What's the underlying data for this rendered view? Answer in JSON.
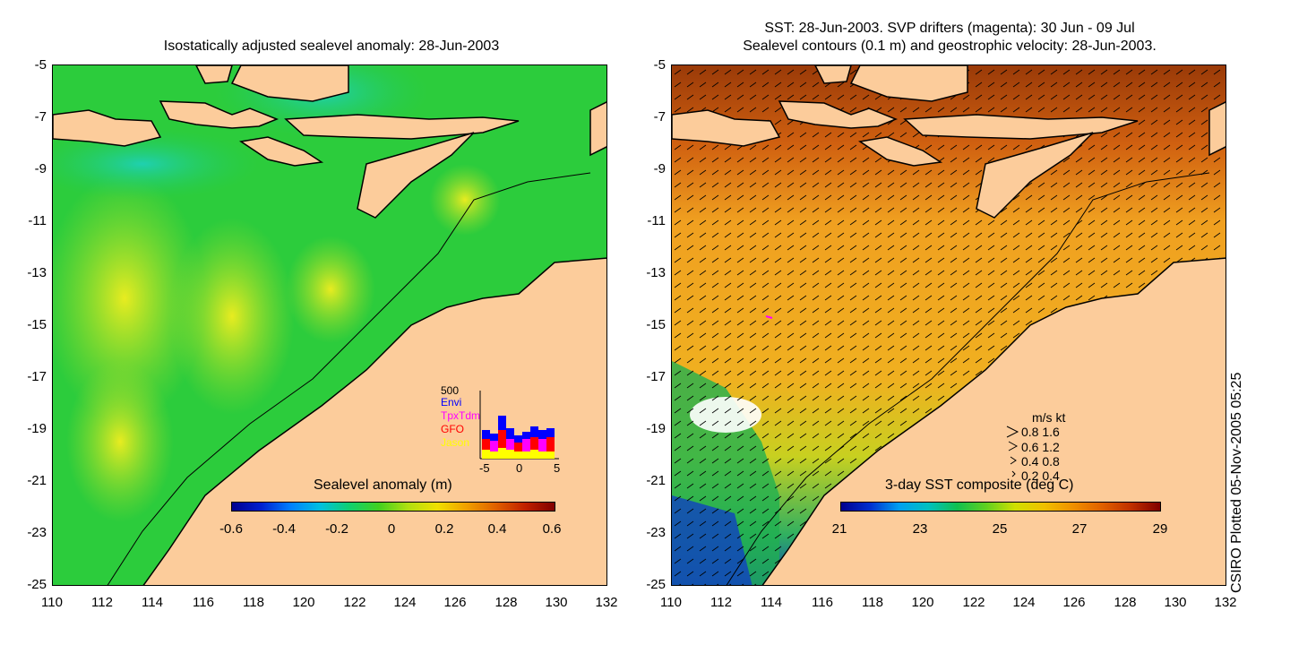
{
  "left_panel": {
    "title": "Isostatically adjusted sealevel anomaly: 28-Jun-2003",
    "colorbar": {
      "title": "Sealevel anomaly (m)",
      "ticks": [
        "-0.6",
        "-0.4",
        "-0.2",
        "0",
        "0.2",
        "0.4",
        "0.6"
      ]
    },
    "inset": {
      "ymax_label": "500",
      "legend": [
        {
          "name": "Envi",
          "color": "#0000ff"
        },
        {
          "name": "TpxTdm",
          "color": "#ff00ff"
        },
        {
          "name": "GFO",
          "color": "#ff0000"
        },
        {
          "name": "Jason",
          "color": "#ffff00"
        }
      ],
      "xticks": [
        "-5",
        "0",
        "5"
      ]
    }
  },
  "right_panel": {
    "title_line1": "SST: 28-Jun-2003. SVP drifters (magenta): 30 Jun - 09 Jul",
    "title_line2": "Sealevel contours (0.1 m) and geostrophic velocity: 28-Jun-2003.",
    "colorbar": {
      "title": "3-day SST composite (deg C)",
      "ticks": [
        "21",
        "23",
        "25",
        "27",
        "29"
      ]
    },
    "velocity_legend": {
      "header": "m/s  kt",
      "rows": [
        "0.8  1.6",
        "0.6  1.2",
        "0.4  0.8",
        "0.2  0.4"
      ]
    }
  },
  "axes": {
    "y_ticks": [
      "-5",
      "-7",
      "-9",
      "-11",
      "-13",
      "-15",
      "-17",
      "-19",
      "-21",
      "-23",
      "-25"
    ],
    "x_ticks": [
      "110",
      "112",
      "114",
      "116",
      "118",
      "120",
      "122",
      "124",
      "126",
      "128",
      "130",
      "132"
    ]
  },
  "stamp": "CSIRO Plotted 05-Nov-2005 05:25",
  "colors": {
    "land": "#fccc9b",
    "ocean_green": "#22cc33",
    "sst_orange": "#f0a020"
  }
}
